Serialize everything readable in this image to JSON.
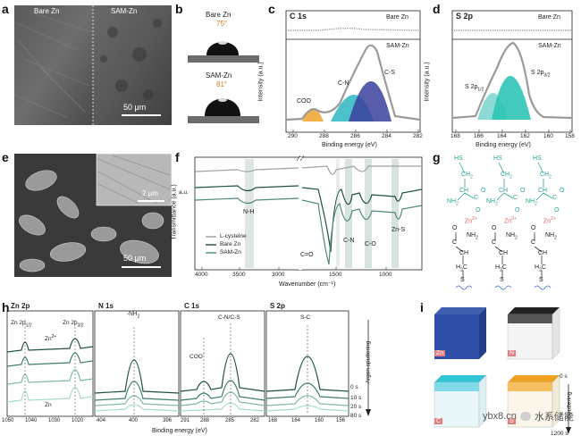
{
  "panels": {
    "a": {
      "letter": "a",
      "left_label": "Bare Zn",
      "right_label": "SAM-Zn",
      "scale": "50 μm"
    },
    "b": {
      "letter": "b",
      "top_label": "Bare Zn",
      "top_angle": "75°",
      "bottom_label": "SAM-Zn",
      "bottom_angle": "81°"
    },
    "c": {
      "letter": "c",
      "title": "C 1s",
      "top_tag": "Bare Zn",
      "bottom_tag": "SAM-Zn",
      "ylabel": "Intensity (a.u.)",
      "xlabel": "Binding energy (eV)",
      "ticks": [
        "290",
        "288",
        "286",
        "284",
        "282"
      ],
      "peaks": [
        "COO",
        "C-N",
        "C-S"
      ]
    },
    "d": {
      "letter": "d",
      "title": "S 2p",
      "top_tag": "Bare Zn",
      "bottom_tag": "SAM-Zn",
      "ylabel": "Intensity (a.u.)",
      "xlabel": "Binding energy (eV)",
      "ticks": [
        "168",
        "166",
        "164",
        "162",
        "160",
        "158"
      ],
      "peak_a": "S 2p",
      "peak_a_sub": "3/2",
      "peak_b": "S 2p",
      "peak_b_sub": "1/2"
    },
    "e": {
      "letter": "e",
      "scale_inset": "2 μm",
      "scale_main": "50 μm"
    },
    "f": {
      "letter": "f",
      "ylabel": "Transmittance (a.u.)",
      "xlabel": "Wavenumber (cm⁻¹)",
      "ticks": [
        "4000",
        "3500",
        "3000",
        "1500",
        "1000"
      ],
      "legend": [
        "L-cysteine",
        "Bare Zn",
        "SAM-Zn"
      ],
      "bands": [
        "N-H",
        "C=O",
        "C-N",
        "C-O",
        "Zn-S"
      ]
    },
    "g": {
      "letter": "g",
      "atoms": {
        "hs": "HS",
        "ch2": "CH",
        "ch": "CH",
        "c": "C",
        "o": "O",
        "nh2": "NH",
        "zn": "Zn",
        "s": "S",
        "h2c": "H",
        "ch_low": "CH"
      }
    },
    "h": {
      "letter": "h",
      "zn": {
        "title": "Zn 2p",
        "p1": "Zn 2p",
        "p1_sub": "1/2",
        "p2": "Zn 2p",
        "p2_sub": "3/2",
        "zn2": "Zn",
        "zn2_sup": "2+",
        "zn0": "Zn",
        "ticks": [
          "1050",
          "1040",
          "1030",
          "1020"
        ]
      },
      "n": {
        "title": "N 1s",
        "peak": "-NH",
        "peak_sub": "2",
        "ticks": [
          "404",
          "400",
          "396"
        ]
      },
      "c": {
        "title": "C 1s",
        "peak1": "COO",
        "peak1_sup": "-",
        "peak2": "C-N/C-S",
        "ticks": [
          "291",
          "288",
          "285",
          "282"
        ]
      },
      "s": {
        "title": "S 2p",
        "peak": "S-C",
        "ticks": [
          "168",
          "164",
          "160",
          "156"
        ]
      },
      "times": [
        "0 s",
        "10 s",
        "20 s",
        "80 s"
      ],
      "side": "Argon sputtering",
      "xlabel": "Binding energy (eV)"
    },
    "i": {
      "letter": "i",
      "tags": [
        "Zn",
        "N",
        "C",
        "S"
      ],
      "time_start": "0 s",
      "time_end": "1200 s",
      "side": "Sputtering"
    }
  },
  "watermark": {
    "site": "ybx8.cn",
    "brand": "水系储能"
  },
  "colors": {
    "coo": "#f0a93a",
    "cn": "#2bb6c2",
    "cs": "#3a3f9c",
    "s32": "#2ec4b6",
    "s12": "#7fd6cf",
    "chem": "#2aa198",
    "zn_red": "#e06060",
    "dark": "#1f4f46",
    "mid": "#4f8a7a",
    "light": "#9cc9bb"
  }
}
